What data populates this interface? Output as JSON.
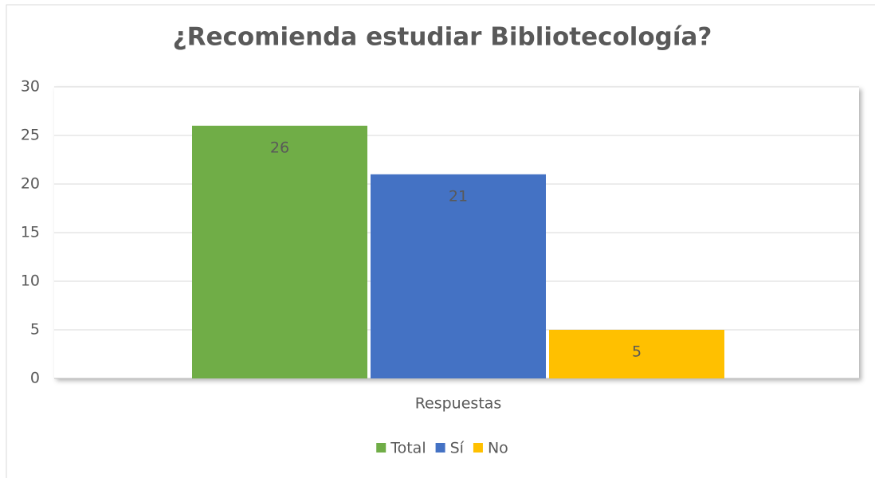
{
  "chart_data": {
    "type": "bar",
    "title": "¿Recomienda estudiar Bibliotecología?",
    "categories": [
      "Respuestas"
    ],
    "series": [
      {
        "name": "Total",
        "color": "#70ad47",
        "values": [
          26
        ]
      },
      {
        "name": "Sí",
        "color": "#4472c4",
        "values": [
          21
        ]
      },
      {
        "name": "No",
        "color": "#ffc000",
        "values": [
          5
        ]
      }
    ],
    "ylim": [
      0,
      30
    ],
    "yticks": [
      0,
      5,
      10,
      15,
      20,
      25,
      30
    ],
    "grid": true,
    "legend": "bottom"
  }
}
